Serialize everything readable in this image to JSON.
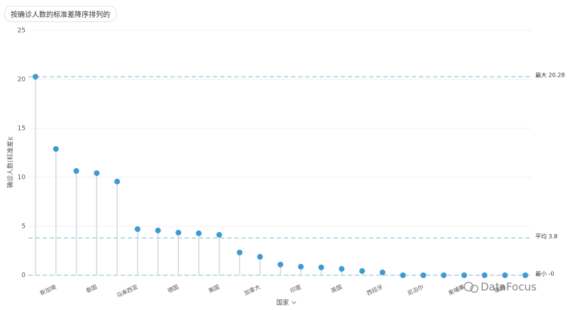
{
  "chart_data": {
    "type": "lollipop",
    "title": "按确诊人数的标准差降序排列的",
    "y_label": "确诊人数(标准差)",
    "x_label": "国家",
    "categories": [
      null,
      "新加坡",
      null,
      "泰国",
      null,
      "马来西亚",
      null,
      "德国",
      null,
      "美国",
      null,
      "加拿大",
      null,
      "印度",
      null,
      "英国",
      null,
      "西班牙",
      null,
      "尼泊尔",
      null,
      "柬埔寨",
      null,
      "瑞典",
      null
    ],
    "values": [
      20.28,
      12.9,
      10.65,
      10.43,
      9.57,
      4.71,
      4.57,
      4.35,
      4.28,
      4.13,
      2.32,
      1.88,
      1.09,
      0.87,
      0.8,
      0.65,
      0.43,
      0.29,
      0,
      0,
      0,
      0,
      0,
      0,
      0
    ],
    "color": "#3c9bd0",
    "stem_color": "#d5d9dd",
    "ylim": [
      0,
      25
    ],
    "yticks": [
      0,
      5,
      10,
      15,
      20,
      25
    ],
    "grid": true,
    "reference_lines": [
      {
        "value": 20.28,
        "label": "最大 20.28"
      },
      {
        "value": 3.8,
        "label": "平均 3.8"
      },
      {
        "value": 0,
        "label": "最小 -0"
      }
    ],
    "reference_color": "#7db9d3",
    "watermark": "DataFocus"
  }
}
